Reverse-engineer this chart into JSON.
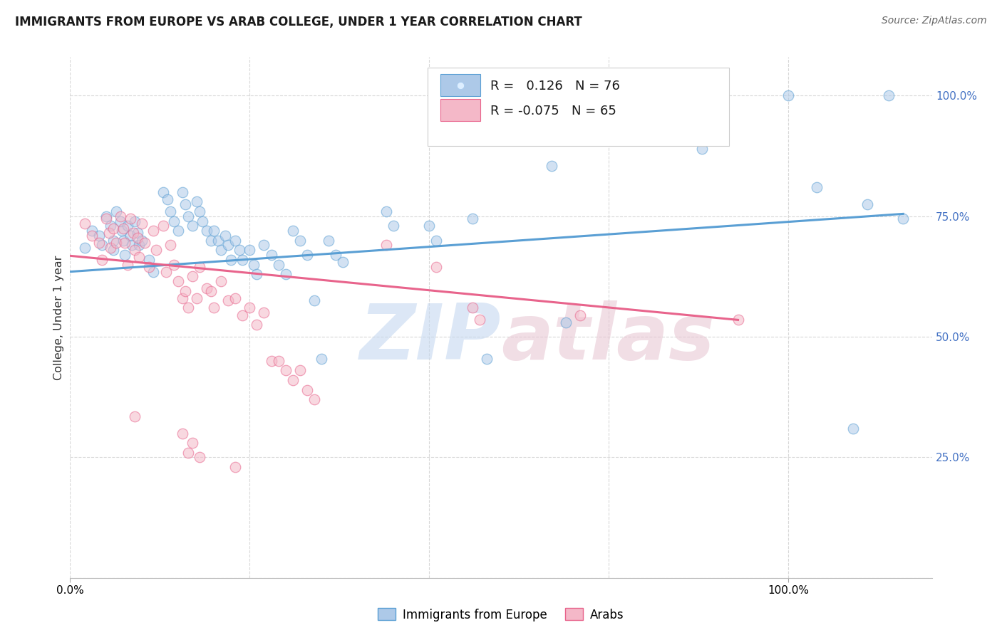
{
  "title": "IMMIGRANTS FROM EUROPE VS ARAB COLLEGE, UNDER 1 YEAR CORRELATION CHART",
  "source": "Source: ZipAtlas.com",
  "ylabel": "College, Under 1 year",
  "legend_entries": [
    {
      "label": "Immigrants from Europe",
      "R": "0.126",
      "N": "76",
      "face_color": "#adc9e8",
      "edge_color": "#5a9fd4"
    },
    {
      "label": "Arabs",
      "R": "-0.075",
      "N": "65",
      "face_color": "#f4b8c8",
      "edge_color": "#e8648c"
    }
  ],
  "blue_scatter": [
    [
      0.01,
      0.685
    ],
    [
      0.015,
      0.72
    ],
    [
      0.02,
      0.71
    ],
    [
      0.022,
      0.69
    ],
    [
      0.025,
      0.75
    ],
    [
      0.028,
      0.73
    ],
    [
      0.03,
      0.7
    ],
    [
      0.03,
      0.68
    ],
    [
      0.032,
      0.76
    ],
    [
      0.035,
      0.74
    ],
    [
      0.036,
      0.72
    ],
    [
      0.037,
      0.7
    ],
    [
      0.038,
      0.67
    ],
    [
      0.04,
      0.73
    ],
    [
      0.042,
      0.71
    ],
    [
      0.043,
      0.69
    ],
    [
      0.045,
      0.74
    ],
    [
      0.047,
      0.715
    ],
    [
      0.048,
      0.69
    ],
    [
      0.05,
      0.7
    ],
    [
      0.055,
      0.66
    ],
    [
      0.058,
      0.635
    ],
    [
      0.065,
      0.8
    ],
    [
      0.068,
      0.785
    ],
    [
      0.07,
      0.76
    ],
    [
      0.072,
      0.74
    ],
    [
      0.075,
      0.72
    ],
    [
      0.078,
      0.8
    ],
    [
      0.08,
      0.775
    ],
    [
      0.082,
      0.75
    ],
    [
      0.085,
      0.73
    ],
    [
      0.088,
      0.78
    ],
    [
      0.09,
      0.76
    ],
    [
      0.092,
      0.74
    ],
    [
      0.095,
      0.72
    ],
    [
      0.098,
      0.7
    ],
    [
      0.1,
      0.72
    ],
    [
      0.103,
      0.7
    ],
    [
      0.105,
      0.68
    ],
    [
      0.108,
      0.71
    ],
    [
      0.11,
      0.69
    ],
    [
      0.112,
      0.66
    ],
    [
      0.115,
      0.7
    ],
    [
      0.118,
      0.68
    ],
    [
      0.12,
      0.66
    ],
    [
      0.125,
      0.68
    ],
    [
      0.128,
      0.65
    ],
    [
      0.13,
      0.63
    ],
    [
      0.135,
      0.69
    ],
    [
      0.14,
      0.67
    ],
    [
      0.145,
      0.65
    ],
    [
      0.15,
      0.63
    ],
    [
      0.155,
      0.72
    ],
    [
      0.16,
      0.7
    ],
    [
      0.165,
      0.67
    ],
    [
      0.17,
      0.575
    ],
    [
      0.175,
      0.455
    ],
    [
      0.18,
      0.7
    ],
    [
      0.185,
      0.67
    ],
    [
      0.19,
      0.655
    ],
    [
      0.22,
      0.76
    ],
    [
      0.225,
      0.73
    ],
    [
      0.25,
      0.73
    ],
    [
      0.255,
      0.7
    ],
    [
      0.28,
      0.745
    ],
    [
      0.29,
      0.455
    ],
    [
      0.335,
      0.855
    ],
    [
      0.345,
      0.53
    ],
    [
      0.43,
      0.94
    ],
    [
      0.44,
      0.89
    ],
    [
      0.5,
      1.0
    ],
    [
      0.52,
      0.81
    ],
    [
      0.545,
      0.31
    ],
    [
      0.555,
      0.775
    ],
    [
      0.57,
      1.0
    ],
    [
      0.58,
      0.745
    ]
  ],
  "pink_scatter": [
    [
      0.01,
      0.735
    ],
    [
      0.015,
      0.71
    ],
    [
      0.02,
      0.695
    ],
    [
      0.022,
      0.66
    ],
    [
      0.025,
      0.745
    ],
    [
      0.027,
      0.715
    ],
    [
      0.028,
      0.685
    ],
    [
      0.03,
      0.725
    ],
    [
      0.032,
      0.695
    ],
    [
      0.035,
      0.75
    ],
    [
      0.037,
      0.725
    ],
    [
      0.038,
      0.695
    ],
    [
      0.04,
      0.65
    ],
    [
      0.042,
      0.745
    ],
    [
      0.044,
      0.715
    ],
    [
      0.045,
      0.68
    ],
    [
      0.047,
      0.705
    ],
    [
      0.048,
      0.665
    ],
    [
      0.05,
      0.735
    ],
    [
      0.052,
      0.695
    ],
    [
      0.055,
      0.645
    ],
    [
      0.058,
      0.72
    ],
    [
      0.06,
      0.68
    ],
    [
      0.065,
      0.73
    ],
    [
      0.067,
      0.635
    ],
    [
      0.07,
      0.69
    ],
    [
      0.072,
      0.65
    ],
    [
      0.075,
      0.615
    ],
    [
      0.078,
      0.58
    ],
    [
      0.08,
      0.595
    ],
    [
      0.082,
      0.56
    ],
    [
      0.085,
      0.625
    ],
    [
      0.088,
      0.58
    ],
    [
      0.09,
      0.645
    ],
    [
      0.095,
      0.6
    ],
    [
      0.098,
      0.595
    ],
    [
      0.1,
      0.56
    ],
    [
      0.105,
      0.615
    ],
    [
      0.11,
      0.575
    ],
    [
      0.115,
      0.58
    ],
    [
      0.12,
      0.545
    ],
    [
      0.125,
      0.56
    ],
    [
      0.13,
      0.525
    ],
    [
      0.135,
      0.55
    ],
    [
      0.14,
      0.45
    ],
    [
      0.145,
      0.45
    ],
    [
      0.15,
      0.43
    ],
    [
      0.155,
      0.41
    ],
    [
      0.16,
      0.43
    ],
    [
      0.165,
      0.39
    ],
    [
      0.17,
      0.37
    ],
    [
      0.22,
      0.69
    ],
    [
      0.255,
      0.645
    ],
    [
      0.28,
      0.56
    ],
    [
      0.285,
      0.535
    ],
    [
      0.355,
      0.545
    ],
    [
      0.44,
      0.995
    ],
    [
      0.455,
      0.995
    ],
    [
      0.465,
      0.535
    ],
    [
      0.045,
      0.335
    ],
    [
      0.078,
      0.3
    ],
    [
      0.082,
      0.26
    ],
    [
      0.085,
      0.28
    ],
    [
      0.09,
      0.25
    ],
    [
      0.115,
      0.23
    ]
  ],
  "blue_line_x": [
    0.0,
    0.58
  ],
  "blue_line_y": [
    0.635,
    0.755
  ],
  "pink_line_x": [
    0.0,
    0.465
  ],
  "pink_line_y": [
    0.668,
    0.535
  ],
  "ytick_positions": [
    0.25,
    0.5,
    0.75,
    1.0
  ],
  "ytick_labels": [
    "25.0%",
    "50.0%",
    "75.0%",
    "100.0%"
  ],
  "xtick_positions": [
    0.0,
    0.125,
    0.25,
    0.375,
    0.5
  ],
  "xlim": [
    0.0,
    0.6
  ],
  "ylim": [
    0.0,
    1.08
  ],
  "grid_color": "#d8d8d8",
  "bg_color": "#ffffff",
  "scatter_size": 110,
  "scatter_alpha": 0.55,
  "right_axis_color": "#4472c4",
  "title_fontsize": 12,
  "source_fontsize": 10
}
